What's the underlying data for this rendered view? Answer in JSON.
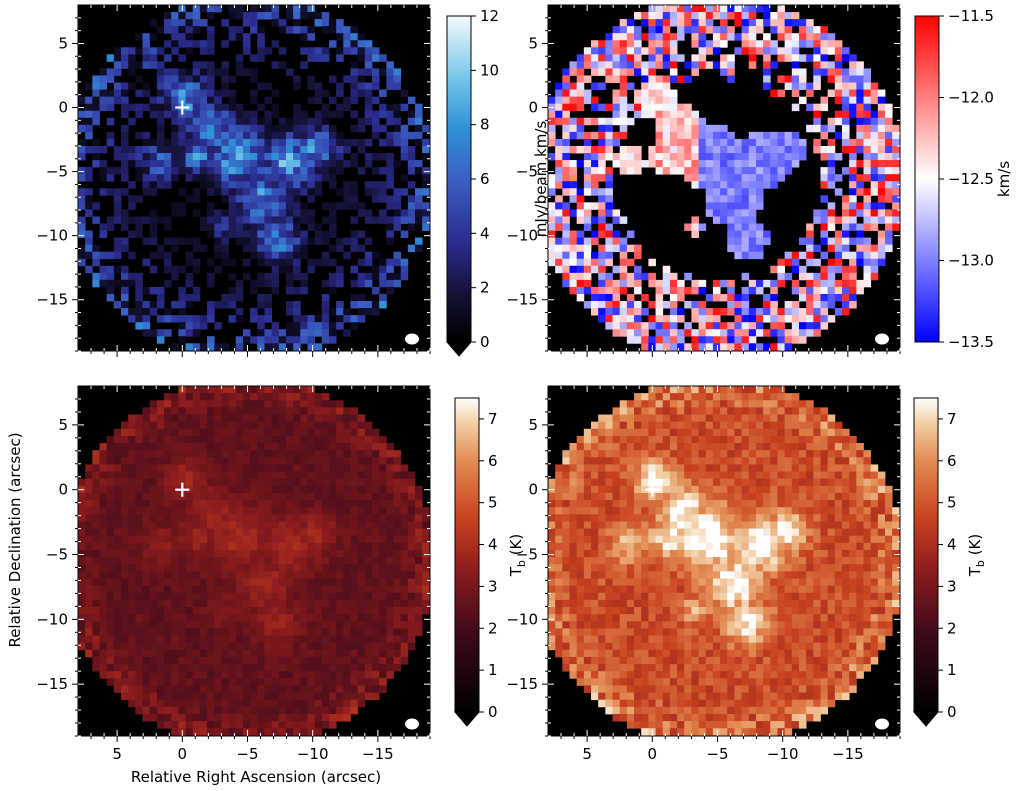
{
  "figure": {
    "x_axis_label": "Relative Right Ascension (arcsec)",
    "y_axis_label": "Relative Declination (arcsec)",
    "x_ticks": [
      5,
      0,
      -5,
      -10,
      -15
    ],
    "x_tick_labels": [
      "5",
      "0",
      "−5",
      "−10",
      "−15"
    ],
    "y_ticks": [
      5,
      0,
      -5,
      -10,
      -15
    ],
    "y_tick_labels": [
      "5",
      "0",
      "−5",
      "−10",
      "−15"
    ]
  },
  "chart_data": [
    {
      "type": "heatmap",
      "panel": "top-left",
      "description_map": "integrated intensity (moment 0)",
      "colormap": "cubehelix-blue",
      "colorbar_label": "mJy/beam km/s",
      "colorbar_range": [
        0,
        12
      ],
      "colorbar_ticks": [
        0,
        2,
        4,
        6,
        8,
        10,
        12
      ],
      "colorbar_tick_labels": [
        "0",
        "2",
        "4",
        "6",
        "8",
        "10",
        "12"
      ],
      "colorbar_extend": "min",
      "xlim": [
        8,
        -19
      ],
      "ylim": [
        -19,
        8
      ],
      "marker": {
        "x": 0,
        "y": 0,
        "symbol": "+"
      },
      "beam": "white ellipse, lower right"
    },
    {
      "type": "heatmap",
      "panel": "top-right",
      "description_map": "velocity field (moment 1)",
      "colormap": "bwr",
      "colorbar_label": "km/s",
      "colorbar_range": [
        -13.5,
        -11.5
      ],
      "colorbar_ticks": [
        -11.5,
        -12.0,
        -12.5,
        -13.0,
        -13.5
      ],
      "colorbar_tick_labels": [
        "−11.5",
        "−12.0",
        "−12.5",
        "−13.0",
        "−13.5"
      ],
      "colorbar_extend": "neither",
      "xlim": [
        8,
        -19
      ],
      "ylim": [
        -19,
        8
      ],
      "marker": {
        "x": 0,
        "y": 0,
        "symbol": "+"
      },
      "beam": "white ellipse, lower right"
    },
    {
      "type": "heatmap",
      "panel": "bottom-left",
      "description_map": "brightness temperature",
      "colormap": "gist_heat",
      "colorbar_label": "T",
      "colorbar_label_sub": "b",
      "colorbar_label_unit": " (K)",
      "colorbar_range": [
        0,
        7.5
      ],
      "colorbar_ticks": [
        0,
        1,
        2,
        3,
        4,
        5,
        6,
        7
      ],
      "colorbar_tick_labels": [
        "0",
        "1",
        "2",
        "3",
        "4",
        "5",
        "6",
        "7"
      ],
      "colorbar_extend": "min",
      "xlim": [
        8,
        -19
      ],
      "ylim": [
        -19,
        8
      ],
      "marker": {
        "x": 0,
        "y": 0,
        "symbol": "+"
      },
      "beam": "white ellipse, lower right"
    },
    {
      "type": "heatmap",
      "panel": "bottom-right",
      "description_map": "brightness temperature",
      "colormap": "gist_heat",
      "colorbar_label": "T",
      "colorbar_label_sub": "b",
      "colorbar_label_unit": " (K)",
      "colorbar_range": [
        0,
        7.5
      ],
      "colorbar_ticks": [
        0,
        1,
        2,
        3,
        4,
        5,
        6,
        7
      ],
      "colorbar_tick_labels": [
        "0",
        "1",
        "2",
        "3",
        "4",
        "5",
        "6",
        "7"
      ],
      "colorbar_extend": "min",
      "xlim": [
        8,
        -19
      ],
      "ylim": [
        -19,
        8
      ],
      "marker": {
        "x": 0,
        "y": 0,
        "symbol": "+"
      },
      "beam": "white ellipse, lower right"
    }
  ]
}
